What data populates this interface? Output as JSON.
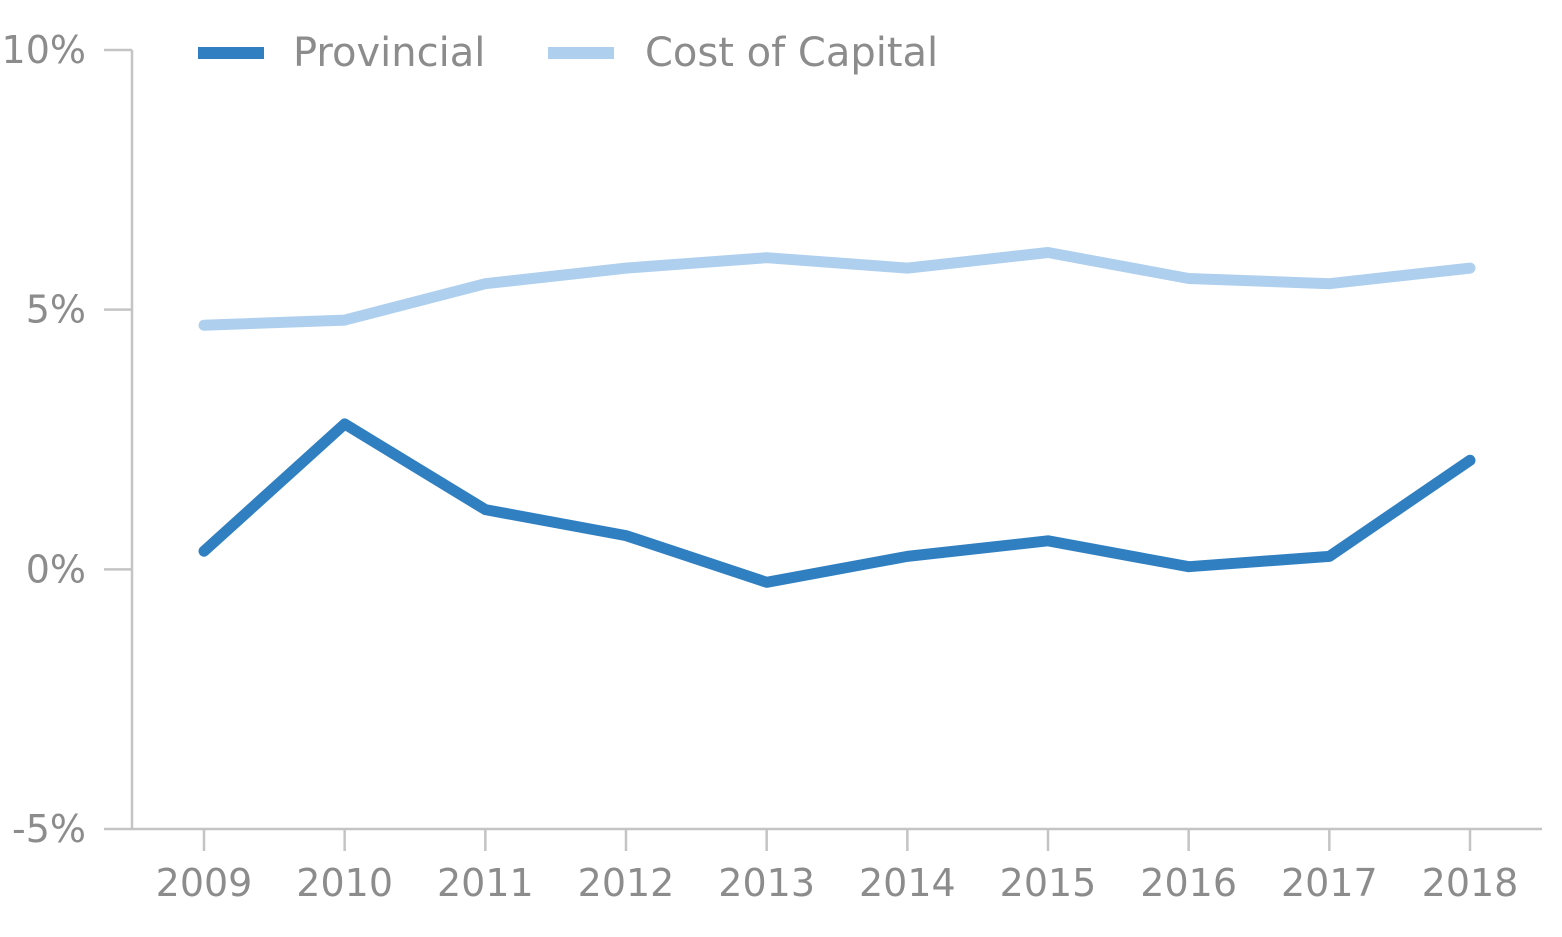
{
  "chart_data": {
    "type": "line",
    "title": "",
    "xlabel": "",
    "ylabel": "",
    "categories": [
      "2009",
      "2010",
      "2011",
      "2012",
      "2013",
      "2014",
      "2015",
      "2016",
      "2017",
      "2018"
    ],
    "y_tick_values": [
      10,
      5,
      0,
      -5
    ],
    "y_tick_labels": [
      "10%",
      "5%",
      "0%",
      "-5%"
    ],
    "ylim": [
      -5,
      10
    ],
    "grid": false,
    "legend_position": "top-left",
    "series": [
      {
        "name": "Provincial",
        "color": "#2f7fc1",
        "values": [
          0.35,
          2.8,
          1.15,
          0.65,
          -0.25,
          0.25,
          0.55,
          0.05,
          0.25,
          2.1
        ]
      },
      {
        "name": "Cost of Capital",
        "color": "#aecfee",
        "values": [
          4.7,
          4.8,
          5.5,
          5.8,
          6.0,
          5.8,
          6.1,
          5.6,
          5.5,
          5.8
        ]
      }
    ]
  }
}
